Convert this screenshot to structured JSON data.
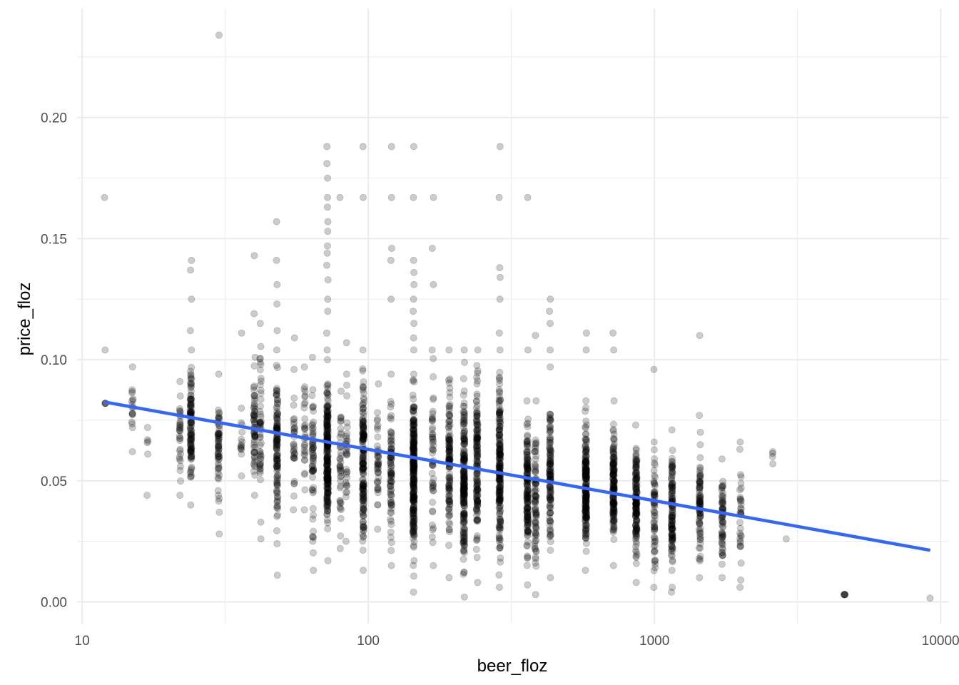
{
  "chart_data": {
    "type": "scatter",
    "title": "",
    "xlabel": "beer_floz",
    "ylabel": "price_floz",
    "x_scale": "log10",
    "xlim": [
      9.6,
      10700
    ],
    "ylim": [
      -0.009,
      0.245
    ],
    "x_ticks": [
      {
        "value": 10,
        "label": "10"
      },
      {
        "value": 100,
        "label": "100"
      },
      {
        "value": 1000,
        "label": "1000"
      },
      {
        "value": 10000,
        "label": "10000"
      }
    ],
    "y_ticks": [
      {
        "value": 0.0,
        "label": "0.00"
      },
      {
        "value": 0.05,
        "label": "0.05"
      },
      {
        "value": 0.1,
        "label": "0.10"
      },
      {
        "value": 0.15,
        "label": "0.15"
      },
      {
        "value": 0.2,
        "label": "0.20"
      }
    ],
    "grid": true,
    "legend": "none",
    "point_color": "#000000",
    "point_alpha": 0.2,
    "trend_color": "#3366FF",
    "background": "#FFFFFF",
    "grid_color": "#EBEBEB",
    "trend_line": {
      "method": "linear fit on log10(x)",
      "x": [
        12,
        9200
      ],
      "y": [
        0.0825,
        0.0213
      ]
    },
    "columns": [
      {
        "x": 12,
        "lo": 0.082,
        "hi": 0.082,
        "n": 2,
        "extra": [
          0.104,
          0.167
        ]
      },
      {
        "x": 15,
        "lo": 0.062,
        "hi": 0.097,
        "n": 16,
        "extra": []
      },
      {
        "x": 16.9,
        "lo": 0.061,
        "hi": 0.072,
        "n": 3,
        "extra": [
          0.044
        ]
      },
      {
        "x": 22,
        "lo": 0.044,
        "hi": 0.091,
        "n": 30,
        "extra": []
      },
      {
        "x": 24,
        "lo": 0.04,
        "hi": 0.104,
        "n": 110,
        "extra": [
          0.112,
          0.125,
          0.137,
          0.141
        ]
      },
      {
        "x": 30,
        "lo": 0.037,
        "hi": 0.094,
        "n": 60,
        "extra": [
          0.028,
          0.234
        ]
      },
      {
        "x": 36,
        "lo": 0.052,
        "hi": 0.08,
        "n": 12,
        "extra": [
          0.111
        ]
      },
      {
        "x": 40,
        "lo": 0.044,
        "hi": 0.101,
        "n": 60,
        "extra": [
          0.119,
          0.143
        ]
      },
      {
        "x": 42,
        "lo": 0.026,
        "hi": 0.115,
        "n": 50,
        "extra": []
      },
      {
        "x": 48,
        "lo": 0.024,
        "hi": 0.104,
        "n": 120,
        "extra": [
          0.011,
          0.112,
          0.123,
          0.131,
          0.141,
          0.157
        ]
      },
      {
        "x": 55,
        "lo": 0.038,
        "hi": 0.096,
        "n": 30,
        "extra": [
          0.109
        ]
      },
      {
        "x": 60,
        "lo": 0.038,
        "hi": 0.097,
        "n": 30,
        "extra": []
      },
      {
        "x": 64,
        "lo": 0.013,
        "hi": 0.101,
        "n": 60,
        "extra": []
      },
      {
        "x": 72,
        "lo": 0.017,
        "hi": 0.1,
        "n": 230,
        "extra": [
          0.104,
          0.111,
          0.12,
          0.125,
          0.133,
          0.139,
          0.144,
          0.147,
          0.153,
          0.157,
          0.163,
          0.167,
          0.175,
          0.181,
          0.188
        ]
      },
      {
        "x": 80,
        "lo": 0.022,
        "hi": 0.087,
        "n": 40,
        "extra": [
          0.167
        ]
      },
      {
        "x": 84,
        "lo": 0.025,
        "hi": 0.094,
        "n": 30,
        "extra": [
          0.107
        ]
      },
      {
        "x": 96,
        "lo": 0.013,
        "hi": 0.104,
        "n": 170,
        "extra": [
          0.167,
          0.188
        ]
      },
      {
        "x": 108,
        "lo": 0.03,
        "hi": 0.09,
        "n": 40,
        "extra": []
      },
      {
        "x": 120,
        "lo": 0.015,
        "hi": 0.094,
        "n": 80,
        "extra": [
          0.125,
          0.141,
          0.146,
          0.167,
          0.188
        ]
      },
      {
        "x": 144,
        "lo": 0.004,
        "hi": 0.104,
        "n": 260,
        "extra": [
          0.109,
          0.115,
          0.12,
          0.125,
          0.131,
          0.136,
          0.141,
          0.167,
          0.188
        ]
      },
      {
        "x": 168,
        "lo": 0.015,
        "hi": 0.104,
        "n": 50,
        "extra": [
          0.131,
          0.146,
          0.167
        ]
      },
      {
        "x": 192,
        "lo": 0.01,
        "hi": 0.104,
        "n": 120,
        "extra": []
      },
      {
        "x": 216,
        "lo": 0.002,
        "hi": 0.104,
        "n": 200,
        "extra": []
      },
      {
        "x": 240,
        "lo": 0.008,
        "hi": 0.104,
        "n": 150,
        "extra": []
      },
      {
        "x": 288,
        "lo": 0.006,
        "hi": 0.104,
        "n": 200,
        "extra": [
          0.111,
          0.125,
          0.134,
          0.138,
          0.167,
          0.188
        ]
      },
      {
        "x": 360,
        "lo": 0.007,
        "hi": 0.083,
        "n": 150,
        "extra": [
          0.104,
          0.167
        ]
      },
      {
        "x": 384,
        "lo": 0.003,
        "hi": 0.083,
        "n": 80,
        "extra": [
          0.11
        ]
      },
      {
        "x": 432,
        "lo": 0.01,
        "hi": 0.097,
        "n": 120,
        "extra": [
          0.104,
          0.115,
          0.12,
          0.125
        ]
      },
      {
        "x": 576,
        "lo": 0.013,
        "hi": 0.083,
        "n": 200,
        "extra": [
          0.104,
          0.111
        ]
      },
      {
        "x": 720,
        "lo": 0.015,
        "hi": 0.083,
        "n": 150,
        "extra": [
          0.104,
          0.111
        ]
      },
      {
        "x": 864,
        "lo": 0.008,
        "hi": 0.073,
        "n": 150,
        "extra": []
      },
      {
        "x": 1000,
        "lo": 0.006,
        "hi": 0.066,
        "n": 60,
        "extra": [
          0.096
        ]
      },
      {
        "x": 1152,
        "lo": 0.004,
        "hi": 0.071,
        "n": 120,
        "extra": []
      },
      {
        "x": 1440,
        "lo": 0.01,
        "hi": 0.07,
        "n": 80,
        "extra": [
          0.077,
          0.11
        ]
      },
      {
        "x": 1728,
        "lo": 0.01,
        "hi": 0.059,
        "n": 60,
        "extra": []
      },
      {
        "x": 2000,
        "lo": 0.006,
        "hi": 0.063,
        "n": 30,
        "extra": [
          0.009,
          0.066
        ]
      },
      {
        "x": 2592,
        "lo": 0.057,
        "hi": 0.062,
        "n": 2,
        "extra": []
      },
      {
        "x": 2880,
        "lo": 0.026,
        "hi": 0.026,
        "n": 1,
        "extra": []
      },
      {
        "x": 4608,
        "lo": 0.003,
        "hi": 0.003,
        "n": 4,
        "extra": []
      },
      {
        "x": 9216,
        "lo": 0.0015,
        "hi": 0.0015,
        "n": 1,
        "extra": []
      }
    ]
  }
}
